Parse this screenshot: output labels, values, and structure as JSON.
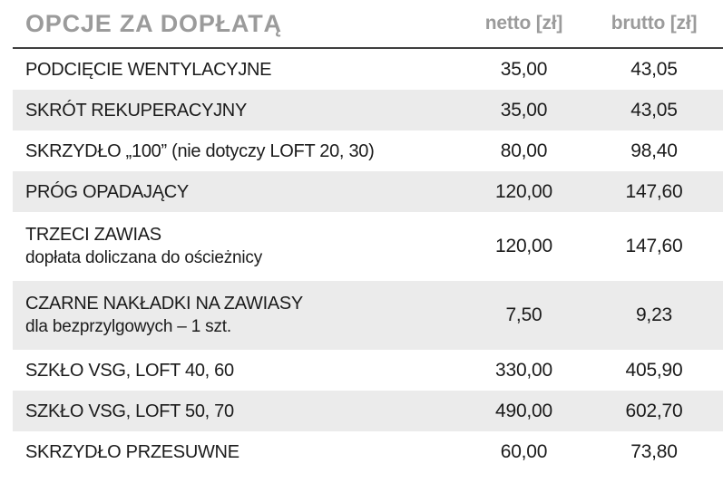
{
  "colors": {
    "title_gray": "#9b9b9b",
    "row_stripe": "#ebebeb",
    "text_dark": "#1b1b1b",
    "separator_line": "#3f3f3f"
  },
  "table": {
    "title": "OPCJE ZA DOPŁATĄ",
    "columns": {
      "netto": "netto [zł]",
      "brutto": "brutto [zł]"
    },
    "rows": [
      {
        "name": "PODCIĘCIE WENTYLACYJNE",
        "note": "",
        "netto": "35,00",
        "brutto": "43,05"
      },
      {
        "name": "SKRÓT REKUPERACYJNY",
        "note": "",
        "netto": "35,00",
        "brutto": "43,05"
      },
      {
        "name": "SKRZYDŁO „100” (nie dotyczy LOFT 20, 30)",
        "note": "",
        "netto": "80,00",
        "brutto": "98,40"
      },
      {
        "name": "PRÓG OPADAJĄCY",
        "note": "",
        "netto": "120,00",
        "brutto": "147,60"
      },
      {
        "name": "TRZECI ZAWIAS",
        "note": "dopłata doliczana do ościeżnicy",
        "netto": "120,00",
        "brutto": "147,60"
      },
      {
        "name": "CZARNE NAKŁADKI NA ZAWIASY",
        "note": "dla bezprzylgowych – 1 szt.",
        "netto": "7,50",
        "brutto": "9,23"
      },
      {
        "name": "SZKŁO VSG, LOFT 40, 60",
        "note": "",
        "netto": "330,00",
        "brutto": "405,90"
      },
      {
        "name": "SZKŁO VSG, LOFT 50, 70",
        "note": "",
        "netto": "490,00",
        "brutto": "602,70"
      },
      {
        "name": "SKRZYDŁO PRZESUWNE",
        "note": "",
        "netto": "60,00",
        "brutto": "73,80"
      }
    ]
  }
}
